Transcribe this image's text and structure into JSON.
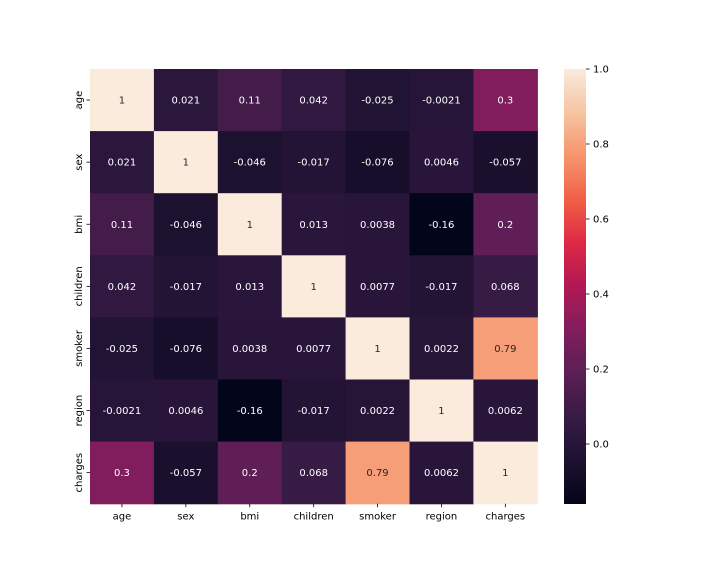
{
  "chart_data": {
    "type": "heatmap",
    "title": "",
    "xlabel": "",
    "ylabel": "",
    "x_labels": [
      "age",
      "sex",
      "bmi",
      "children",
      "smoker",
      "region",
      "charges"
    ],
    "y_labels": [
      "age",
      "sex",
      "bmi",
      "children",
      "smoker",
      "region",
      "charges"
    ],
    "values": [
      [
        1,
        0.021,
        0.11,
        0.042,
        -0.025,
        -0.0021,
        0.3
      ],
      [
        0.021,
        1,
        -0.046,
        -0.017,
        -0.076,
        0.0046,
        -0.057
      ],
      [
        0.11,
        -0.046,
        1,
        0.013,
        0.0038,
        -0.16,
        0.2
      ],
      [
        0.042,
        -0.017,
        0.013,
        1,
        0.0077,
        -0.017,
        0.068
      ],
      [
        -0.025,
        -0.076,
        0.0038,
        0.0077,
        1,
        0.0022,
        0.79
      ],
      [
        -0.0021,
        0.0046,
        -0.16,
        -0.017,
        0.0022,
        1,
        0.0062
      ],
      [
        0.3,
        -0.057,
        0.2,
        0.068,
        0.79,
        0.0062,
        1
      ]
    ],
    "annotations": [
      [
        "1",
        "0.021",
        "0.11",
        "0.042",
        "-0.025",
        "-0.0021",
        "0.3"
      ],
      [
        "0.021",
        "1",
        "-0.046",
        "-0.017",
        "-0.076",
        "0.0046",
        "-0.057"
      ],
      [
        "0.11",
        "-0.046",
        "1",
        "0.013",
        "0.0038",
        "-0.16",
        "0.2"
      ],
      [
        "0.042",
        "-0.017",
        "0.013",
        "1",
        "0.0077",
        "-0.017",
        "0.068"
      ],
      [
        "-0.025",
        "-0.076",
        "0.0038",
        "0.0077",
        "1",
        "0.0022",
        "0.79"
      ],
      [
        "-0.0021",
        "0.0046",
        "-0.16",
        "-0.017",
        "0.0022",
        "1",
        "0.0062"
      ],
      [
        "0.3",
        "-0.057",
        "0.2",
        "0.068",
        "0.79",
        "0.0062",
        "1"
      ]
    ],
    "colorbar": {
      "range": [
        -0.16,
        1
      ],
      "ticks": [
        0.0,
        0.2,
        0.4,
        0.6,
        0.8,
        1.0
      ],
      "tick_labels": [
        "0.0",
        "0.2",
        "0.4",
        "0.6",
        "0.8",
        "1.0"
      ],
      "colormap": "rocket",
      "placement": "right"
    },
    "grid": false
  }
}
